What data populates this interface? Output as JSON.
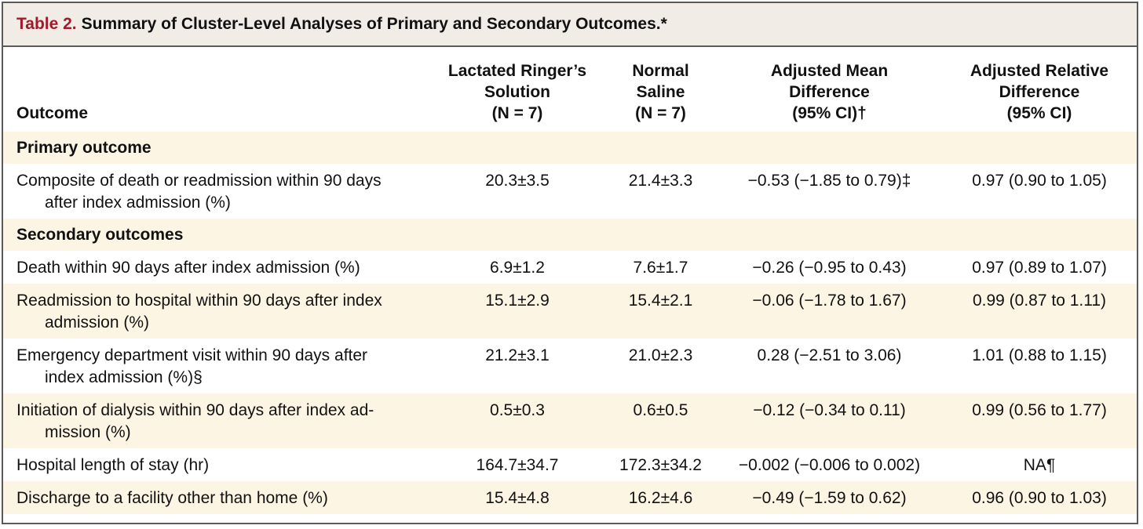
{
  "table": {
    "label": "Table 2.",
    "title": "Summary of Cluster-Level Analyses of Primary and Secondary Outcomes.*",
    "columns": {
      "outcome": "Outcome",
      "lactated_ringers": [
        "Lactated Ringer’s",
        "Solution",
        "(N = 7)"
      ],
      "normal_saline": [
        "Normal",
        "Saline",
        "(N = 7)"
      ],
      "adjusted_mean_difference": [
        "Adjusted Mean",
        "Difference",
        "(95% CI)†"
      ],
      "adjusted_relative_difference": [
        "Adjusted Relative",
        "Difference",
        "(95% CI)"
      ]
    },
    "sections": {
      "primary": "Primary outcome",
      "secondary": "Secondary outcomes"
    },
    "rows": [
      {
        "outcome_line1": "Composite of death or readmission within 90 days",
        "outcome_line2": "after index admission (%)",
        "lactated_ringers": "20.3±3.5",
        "normal_saline": "21.4±3.3",
        "adjusted_mean_difference": "−0.53 (−1.85 to 0.79)‡",
        "adjusted_relative_difference": "0.97 (0.90 to 1.05)"
      },
      {
        "outcome_line1": "Death within 90 days after index admission (%)",
        "outcome_line2": "",
        "lactated_ringers": "6.9±1.2",
        "normal_saline": "7.6±1.7",
        "adjusted_mean_difference": "−0.26 (−0.95 to 0.43)",
        "adjusted_relative_difference": "0.97 (0.89 to 1.07)"
      },
      {
        "outcome_line1": "Readmission to hospital within 90 days after index",
        "outcome_line2": "admission (%)",
        "lactated_ringers": "15.1±2.9",
        "normal_saline": "15.4±2.1",
        "adjusted_mean_difference": "−0.06 (−1.78 to 1.67)",
        "adjusted_relative_difference": "0.99 (0.87 to 1.11)"
      },
      {
        "outcome_line1": "Emergency department visit within 90 days after",
        "outcome_line2": "index admission (%)§",
        "lactated_ringers": "21.2±3.1",
        "normal_saline": "21.0±2.3",
        "adjusted_mean_difference": "0.28 (−2.51 to 3.06)",
        "adjusted_relative_difference": "1.01 (0.88 to 1.15)"
      },
      {
        "outcome_line1": "Initiation of dialysis within 90 days after index ad-",
        "outcome_line2": "mission (%)",
        "lactated_ringers": "0.5±0.3",
        "normal_saline": "0.6±0.5",
        "adjusted_mean_difference": "−0.12 (−0.34 to 0.11)",
        "adjusted_relative_difference": "0.99 (0.56 to 1.77)"
      },
      {
        "outcome_line1": "Hospital length of stay (hr)",
        "outcome_line2": "",
        "lactated_ringers": "164.7±34.7",
        "normal_saline": "172.3±34.2",
        "adjusted_mean_difference": "−0.002 (−0.006 to 0.002)",
        "adjusted_relative_difference": "NA¶"
      },
      {
        "outcome_line1": "Discharge to a facility other than home (%)",
        "outcome_line2": "",
        "lactated_ringers": "15.4±4.8",
        "normal_saline": "16.2±4.6",
        "adjusted_mean_difference": "−0.49 (−1.59 to 0.62)",
        "adjusted_relative_difference": "0.96 (0.90 to 1.03)"
      }
    ]
  },
  "colors": {
    "title_label": "#a3192b",
    "title_background": "#f1ece6",
    "row_tint": "#fdf5e4",
    "border": "#5a5a5a"
  }
}
